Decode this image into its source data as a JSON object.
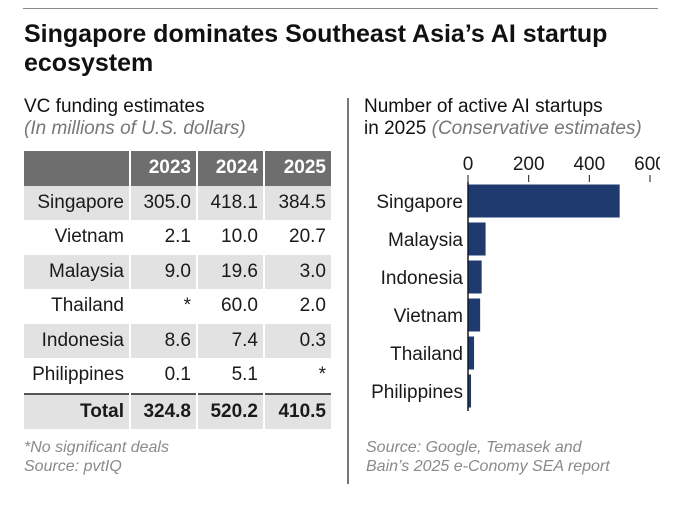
{
  "title": "Singapore dominates Southeast Asia’s AI startup ecosystem",
  "left_panel": {
    "title": "VC funding estimates",
    "subtitle": "(In millions of U.S. dollars)",
    "columns": [
      "2023",
      "2024",
      "2025"
    ],
    "rows": [
      {
        "country": "Singapore",
        "values": [
          "305.0",
          "418.1",
          "384.5"
        ]
      },
      {
        "country": "Vietnam",
        "values": [
          "2.1",
          "10.0",
          "20.7"
        ]
      },
      {
        "country": "Malaysia",
        "values": [
          "9.0",
          "19.6",
          "3.0"
        ]
      },
      {
        "country": "Thailand",
        "values": [
          "*",
          "60.0",
          "2.0"
        ]
      },
      {
        "country": "Indonesia",
        "values": [
          "8.6",
          "7.4",
          "0.3"
        ]
      },
      {
        "country": "Philippines",
        "values": [
          "0.1",
          "5.1",
          "*"
        ]
      }
    ],
    "total": {
      "label": "Total",
      "values": [
        "324.8",
        "520.2",
        "410.5"
      ]
    },
    "note_line1": "*No significant deals",
    "note_line2": "Source: pvtIQ"
  },
  "right_panel": {
    "title_line1": "Number of active AI startups",
    "title_line2": "in 2025",
    "subtitle": "(Conservative estimates)",
    "source_line1": "Source: Google, Temasek and",
    "source_line2": "Bain’s 2025 e-Conomy SEA report"
  },
  "chart_data": {
    "type": "bar",
    "orientation": "horizontal",
    "categories": [
      "Singapore",
      "Malaysia",
      "Indonesia",
      "Vietnam",
      "Thailand",
      "Philippines"
    ],
    "values": [
      500,
      58,
      45,
      40,
      20,
      10
    ],
    "xlim": [
      0,
      600
    ],
    "ticks": [
      0,
      200,
      400,
      600
    ],
    "tick_labels": [
      "0",
      "200",
      "400",
      "600"
    ],
    "bar_color": "#1f3a6e",
    "axis_position": "top",
    "grid": false
  },
  "colors": {
    "header_bg": "#6e6e6e",
    "shade": "#e2e2e2",
    "bar": "#1f3a6e"
  }
}
